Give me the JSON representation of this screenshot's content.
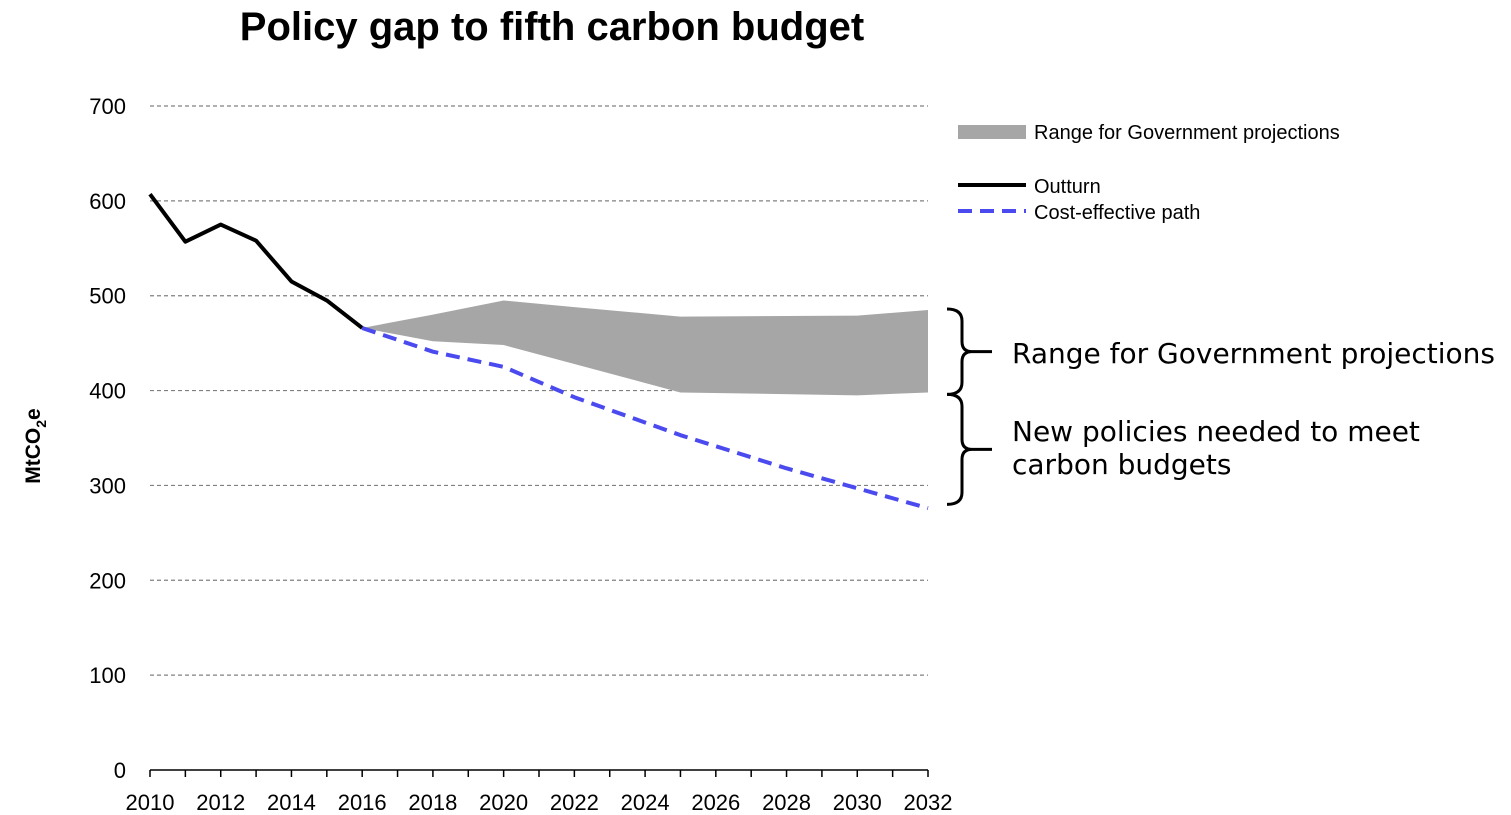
{
  "chart_data": {
    "type": "line",
    "title": "Policy gap to fifth carbon budget",
    "ylabel": "MtCO2e",
    "ylabel_parts": {
      "main": "MtCO",
      "sub": "2",
      "tail": "e"
    },
    "xlabel": "",
    "xlim": [
      2010,
      2032
    ],
    "ylim": [
      0,
      700
    ],
    "x_ticks": [
      "2010",
      "2012",
      "2014",
      "2016",
      "2018",
      "2020",
      "2022",
      "2024",
      "2026",
      "2028",
      "2030",
      "2032"
    ],
    "y_ticks": [
      "0",
      "100",
      "200",
      "300",
      "400",
      "500",
      "600",
      "700"
    ],
    "grid": "horizontal dashed",
    "legend_position": "top-right",
    "series": [
      {
        "name": "Range for Government projections",
        "kind": "band",
        "color": "#a6a6a6",
        "x": [
          2016,
          2018,
          2020,
          2022,
          2025,
          2030,
          2032
        ],
        "upper": [
          466,
          480,
          495,
          488,
          478,
          479,
          485
        ],
        "lower": [
          466,
          452,
          448,
          428,
          398,
          395,
          398
        ]
      },
      {
        "name": "Outturn",
        "kind": "line",
        "color": "#000000",
        "x": [
          2010,
          2011,
          2012,
          2013,
          2014,
          2015,
          2016
        ],
        "y": [
          607,
          557,
          575,
          558,
          515,
          495,
          466
        ]
      },
      {
        "name": "Cost-effective path",
        "kind": "dashed-line",
        "color": "#4a4aef",
        "x": [
          2016,
          2018,
          2020,
          2022,
          2025,
          2028,
          2030,
          2032
        ],
        "y": [
          466,
          441,
          425,
          393,
          353,
          318,
          297,
          276
        ]
      }
    ],
    "annotations": [
      {
        "text": "Range for Government projections",
        "y_range": [
          396,
          486
        ]
      },
      {
        "text_lines": [
          "New policies needed to meet",
          "carbon budgets"
        ],
        "y_range": [
          280,
          396
        ]
      }
    ]
  }
}
